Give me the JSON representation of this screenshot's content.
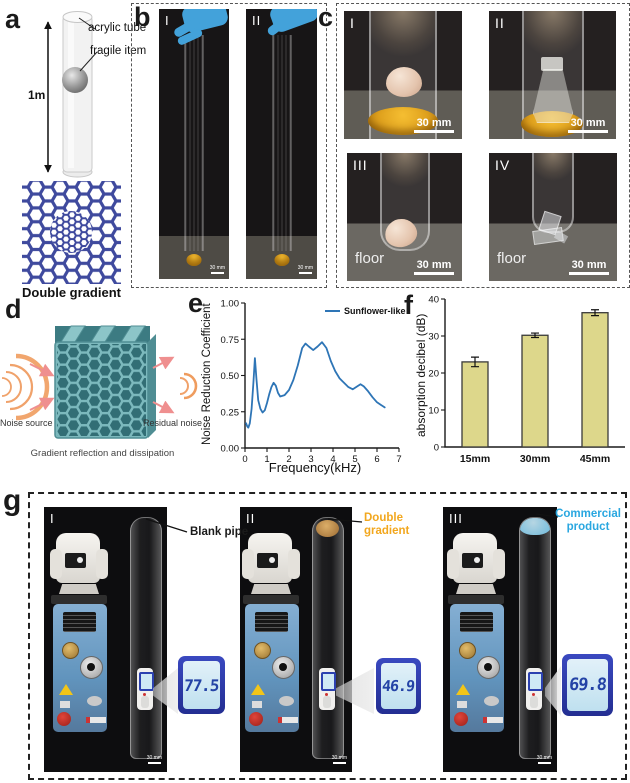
{
  "chart_data": [
    {
      "type": "line",
      "title": "",
      "xlabel": "Frequency(kHz)",
      "ylabel": "Noise Reduction Coefficient",
      "xlim": [
        0,
        7
      ],
      "ylim": [
        0,
        1
      ],
      "xticks": [
        0,
        1,
        2,
        3,
        4,
        5,
        6,
        7
      ],
      "yticks": [
        "0.00",
        "0.25",
        "0.50",
        "0.75",
        "1.00"
      ],
      "legend_position": "top-right",
      "grid": false,
      "line_color": "#2e75b6",
      "series": [
        {
          "name": "Sunflower-like",
          "x": [
            0.05,
            0.1,
            0.15,
            0.22,
            0.3,
            0.38,
            0.45,
            0.52,
            0.6,
            0.7,
            0.8,
            0.9,
            1.0,
            1.1,
            1.2,
            1.3,
            1.4,
            1.5,
            1.6,
            1.8,
            2.0,
            2.2,
            2.4,
            2.6,
            2.75,
            2.9,
            3.1,
            3.3,
            3.5,
            3.7,
            3.9,
            4.1,
            4.3,
            4.5,
            4.7,
            4.9,
            5.1,
            5.25,
            5.4,
            5.6,
            5.8,
            6.0,
            6.2,
            6.35
          ],
          "y": [
            0.17,
            0.15,
            0.14,
            0.17,
            0.27,
            0.45,
            0.62,
            0.48,
            0.33,
            0.27,
            0.245,
            0.26,
            0.31,
            0.37,
            0.42,
            0.45,
            0.43,
            0.38,
            0.355,
            0.365,
            0.4,
            0.47,
            0.57,
            0.69,
            0.72,
            0.7,
            0.675,
            0.7,
            0.73,
            0.69,
            0.6,
            0.53,
            0.48,
            0.45,
            0.42,
            0.405,
            0.425,
            0.44,
            0.425,
            0.39,
            0.35,
            0.315,
            0.295,
            0.28
          ]
        }
      ]
    },
    {
      "type": "bar",
      "title": "",
      "xlabel": "",
      "ylabel": "absorption decibel (dB)",
      "categories": [
        "15mm",
        "30mm",
        "45mm"
      ],
      "values": [
        23.0,
        30.2,
        36.3
      ],
      "errors": [
        1.3,
        0.6,
        0.8
      ],
      "ylim": [
        0,
        40
      ],
      "yticks": [
        0,
        10,
        20,
        30,
        40
      ],
      "grid": false,
      "bar_color": "#ddd78b",
      "bar_border": "#3a3a3a"
    }
  ],
  "panels": {
    "a": {
      "label": "a",
      "tube_annotation": "acrylic tube",
      "item_annotation": "fragile item",
      "height_label": "1m",
      "caption": "Double gradient",
      "honeycomb_color": "#3f4a9e"
    },
    "b": {
      "label": "b",
      "scale_bar": "30 mm",
      "photos": [
        {
          "label": "I"
        },
        {
          "label": "II"
        }
      ]
    },
    "c": {
      "label": "c",
      "scale_bar": "30 mm",
      "floor_label": "floor",
      "photos": [
        {
          "label": "I"
        },
        {
          "label": "II"
        },
        {
          "label": "III"
        },
        {
          "label": "IV"
        }
      ]
    },
    "d": {
      "label": "d",
      "source_label": "Noise source",
      "residual_label": "Residual noise",
      "caption": "Gradient reflection and dissipation",
      "block_color": "#7cb9bd",
      "wave_color": "#f0a26b"
    },
    "e": {
      "label": "e"
    },
    "f": {
      "label": "f"
    },
    "g": {
      "label": "g",
      "scale_bar": "30 mm",
      "items": [
        {
          "label": "I",
          "annotation": "Blank pipe",
          "annotation_color": "#1a1a1a",
          "meter_reading": "77.5"
        },
        {
          "label": "II",
          "annotation": "Double gradient",
          "annotation_color": "#f2a71e",
          "meter_reading": "46.9"
        },
        {
          "label": "III",
          "annotation": "Commercial product",
          "annotation_color": "#2aa7e0",
          "meter_reading": "69.8"
        }
      ]
    }
  }
}
